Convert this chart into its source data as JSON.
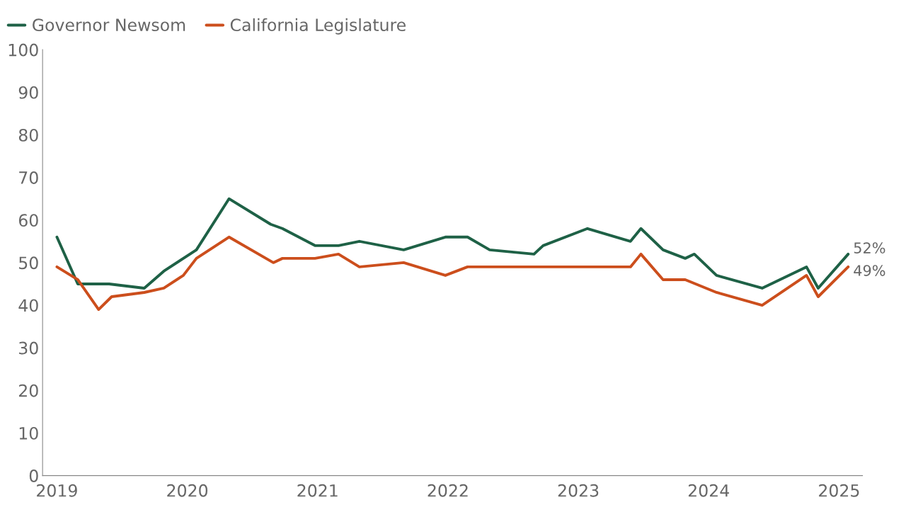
{
  "chart_data": {
    "type": "line",
    "x": [
      2019.0,
      2019.16,
      2019.4,
      2019.67,
      2019.82,
      2019.97,
      2020.07,
      2020.32,
      2020.64,
      2020.73,
      2020.98,
      2021.16,
      2021.32,
      2021.66,
      2021.98,
      2022.15,
      2022.32,
      2022.66,
      2022.73,
      2023.07,
      2023.4,
      2023.48,
      2023.65,
      2023.82,
      2023.89,
      2024.06,
      2024.41,
      2024.75,
      2024.84,
      2025.07
    ],
    "series": [
      {
        "name": "Governor Newsom",
        "color": "#1e6146",
        "values": [
          56,
          45,
          45,
          44,
          48,
          51,
          53,
          65,
          59,
          58,
          54,
          54,
          55,
          53,
          56,
          56,
          53,
          52,
          54,
          58,
          55,
          58,
          53,
          51,
          52,
          47,
          44,
          49,
          44,
          52
        ]
      },
      {
        "name": "California Legislature",
        "color": "#cc4e1c",
        "x": [
          2019.0,
          2019.16,
          2019.32,
          2019.42,
          2019.67,
          2019.82,
          2019.97,
          2020.07,
          2020.32,
          2020.66,
          2020.73,
          2020.98,
          2021.16,
          2021.32,
          2021.66,
          2021.98,
          2022.15,
          2023.4,
          2023.48,
          2023.65,
          2023.82,
          2024.06,
          2024.41,
          2024.75,
          2024.84,
          2025.07
        ],
        "values": [
          49,
          46,
          39,
          42,
          43,
          44,
          47,
          51,
          56,
          50,
          51,
          51,
          52,
          49,
          50,
          47,
          49,
          49,
          52,
          46,
          46,
          43,
          40,
          47,
          42,
          49
        ]
      }
    ],
    "xlim": [
      2018.89,
      2025.18
    ],
    "xticks": [
      2019,
      2020,
      2021,
      2022,
      2023,
      2024,
      2025
    ],
    "ylim": [
      0,
      100
    ],
    "yticks": [
      0,
      10,
      20,
      30,
      40,
      50,
      60,
      70,
      80,
      90,
      100
    ],
    "annotations": [
      {
        "text": "52%",
        "x": 2025.07,
        "y": 52
      },
      {
        "text": "49%",
        "x": 2025.07,
        "y": 49
      }
    ],
    "legend": "top left",
    "grid": false,
    "line_style": "solid",
    "marker": "none"
  }
}
